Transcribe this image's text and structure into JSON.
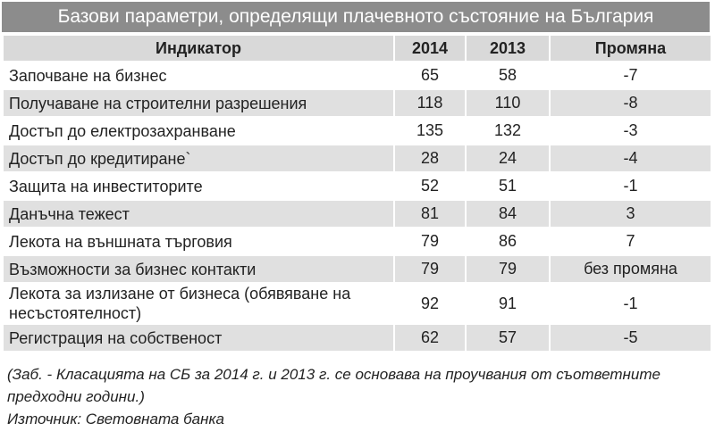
{
  "table": {
    "title": "Базови параметри, определящи плачевното състояние на България",
    "header": [
      "Индикатор",
      "2014",
      "2013",
      "Промяна"
    ],
    "rows": [
      [
        "Започване на бизнес",
        65,
        58,
        -7
      ],
      [
        "Получаване на строителни разрешения",
        118,
        110,
        -8
      ],
      [
        "Достъп  до електрозахранване",
        135,
        132,
        -3
      ],
      [
        "Достъп до кредитиране`",
        28,
        24,
        -4
      ],
      [
        "Защита на инвеститорите",
        52,
        51,
        -1
      ],
      [
        "Данъчна тежест",
        81,
        84,
        3
      ],
      [
        "Лекота на външната търговия",
        79,
        86,
        7
      ],
      [
        "Възможности за бизнес контакти",
        79,
        79,
        "без промяна"
      ],
      [
        "Лекота за излизане от бизнеса (обявяване на несъстоятелност)",
        92,
        91,
        -1
      ],
      [
        "Регистрация на собственост",
        62,
        57,
        -5
      ]
    ]
  },
  "notes": {
    "remark": "(Заб. - Класацията на СБ за 2014 г. и 2013 г. се основава на проучвания от съответните предходни години.)",
    "source": "Източник: Световната банка"
  }
}
